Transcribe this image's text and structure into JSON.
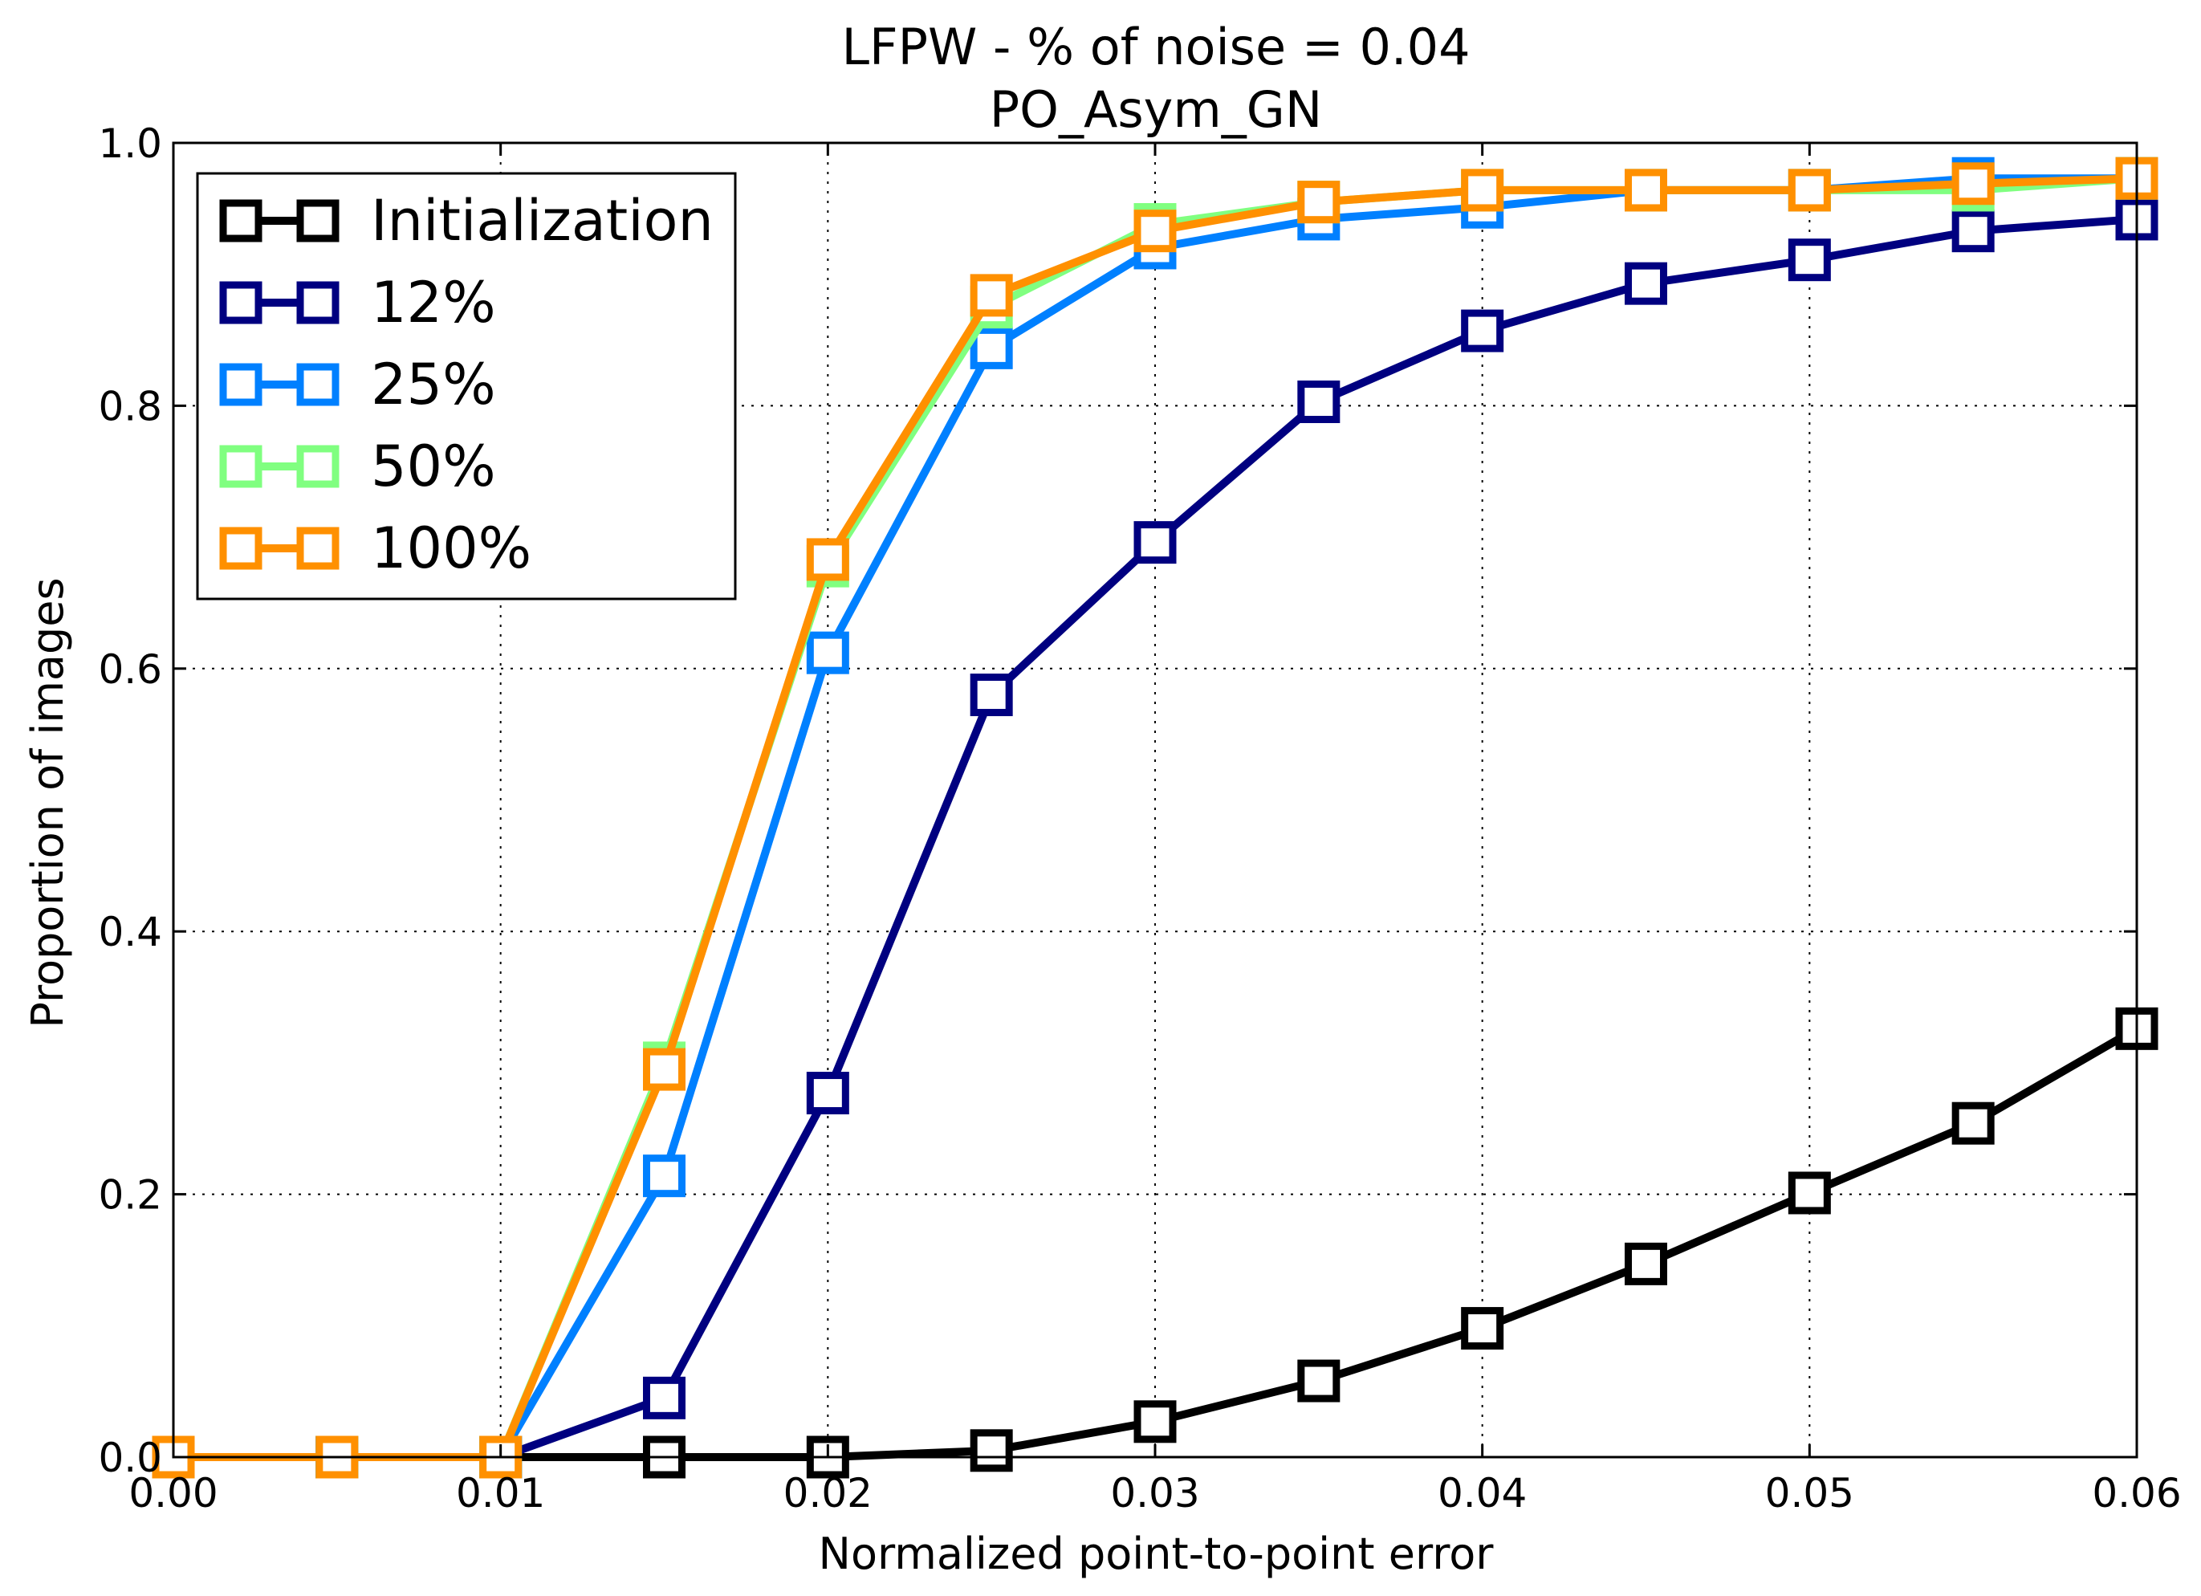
{
  "chart_data": {
    "type": "line",
    "title": "LFPW - % of noise = 0.04",
    "subtitle": "PO_Asym_GN",
    "xlabel": "Normalized point-to-point error",
    "ylabel": "Proportion of images",
    "xlim": [
      0.0,
      0.06
    ],
    "ylim": [
      0.0,
      1.0
    ],
    "x_ticks": [
      "0.00",
      "0.01",
      "0.02",
      "0.03",
      "0.04",
      "0.05",
      "0.06"
    ],
    "y_ticks": [
      "0.0",
      "0.2",
      "0.4",
      "0.6",
      "0.8",
      "1.0"
    ],
    "grid": true,
    "legend_position": "top-left",
    "marker": "square",
    "x": [
      0.0,
      0.005,
      0.01,
      0.015,
      0.02,
      0.025,
      0.03,
      0.035,
      0.04,
      0.045,
      0.05,
      0.055,
      0.06
    ],
    "series": [
      {
        "name": "Initialization",
        "color": "#000000",
        "values": [
          0.0,
          0.0,
          0.0,
          0.0,
          0.0,
          0.005,
          0.027,
          0.058,
          0.098,
          0.147,
          0.201,
          0.254,
          0.326
        ]
      },
      {
        "name": "12%",
        "color": "#000080",
        "values": [
          0.0,
          0.0,
          0.0,
          0.045,
          0.277,
          0.58,
          0.696,
          0.803,
          0.857,
          0.893,
          0.911,
          0.933,
          0.942
        ]
      },
      {
        "name": "25%",
        "color": "#0080ff",
        "values": [
          0.0,
          0.0,
          0.0,
          0.214,
          0.612,
          0.844,
          0.92,
          0.942,
          0.951,
          0.964,
          0.964,
          0.973,
          0.973
        ]
      },
      {
        "name": "50%",
        "color": "#80ff80",
        "values": [
          0.0,
          0.0,
          0.0,
          0.3,
          0.678,
          0.875,
          0.938,
          0.955,
          0.964,
          0.964,
          0.964,
          0.964,
          0.973
        ]
      },
      {
        "name": "100%",
        "color": "#ff9000",
        "values": [
          0.0,
          0.0,
          0.0,
          0.295,
          0.683,
          0.884,
          0.933,
          0.955,
          0.964,
          0.964,
          0.964,
          0.969,
          0.973
        ]
      }
    ]
  }
}
